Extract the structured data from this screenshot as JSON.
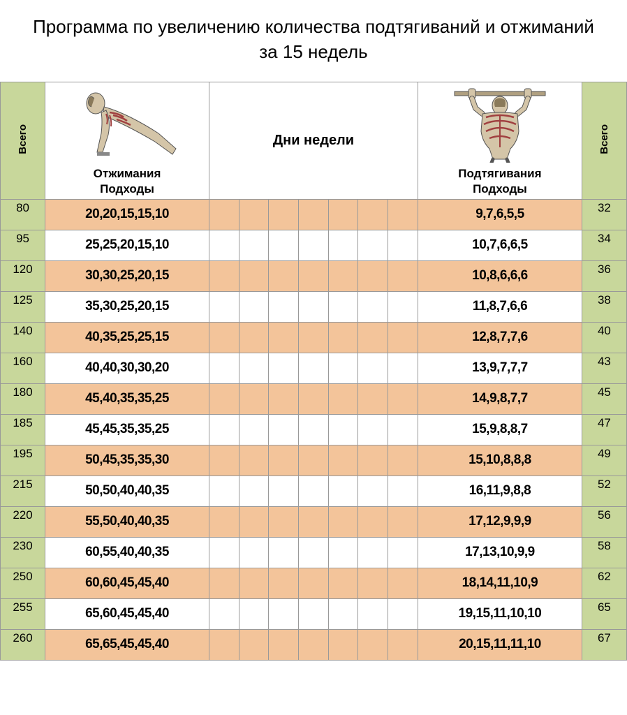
{
  "title": "Программа по увеличению количества подтягиваний и отжиманий за 15 недель",
  "header": {
    "total_label": "Всего",
    "days_label": "Дни недели",
    "pushup_label": "Отжимания\nПодходы",
    "pullup_label": "Подтягивания\nПодходы"
  },
  "colors": {
    "green": "#c8d79b",
    "orange": "#f3c49a",
    "white": "#ffffff",
    "border": "#999999",
    "text": "#000000"
  },
  "day_cols": 7,
  "rows": [
    {
      "push_total": "80",
      "push_sets": "20,20,15,15,10",
      "pull_sets": "9,7,6,5,5",
      "pull_total": "32",
      "shade": "orange"
    },
    {
      "push_total": "95",
      "push_sets": "25,25,20,15,10",
      "pull_sets": "10,7,6,6,5",
      "pull_total": "34",
      "shade": "white"
    },
    {
      "push_total": "120",
      "push_sets": "30,30,25,20,15",
      "pull_sets": "10,8,6,6,6",
      "pull_total": "36",
      "shade": "orange"
    },
    {
      "push_total": "125",
      "push_sets": "35,30,25,20,15",
      "pull_sets": "11,8,7,6,6",
      "pull_total": "38",
      "shade": "white"
    },
    {
      "push_total": "140",
      "push_sets": "40,35,25,25,15",
      "pull_sets": "12,8,7,7,6",
      "pull_total": "40",
      "shade": "orange"
    },
    {
      "push_total": "160",
      "push_sets": "40,40,30,30,20",
      "pull_sets": "13,9,7,7,7",
      "pull_total": "43",
      "shade": "white"
    },
    {
      "push_total": "180",
      "push_sets": "45,40,35,35,25",
      "pull_sets": "14,9,8,7,7",
      "pull_total": "45",
      "shade": "orange"
    },
    {
      "push_total": "185",
      "push_sets": "45,45,35,35,25",
      "pull_sets": "15,9,8,8,7",
      "pull_total": "47",
      "shade": "white"
    },
    {
      "push_total": "195",
      "push_sets": "50,45,35,35,30",
      "pull_sets": "15,10,8,8,8",
      "pull_total": "49",
      "shade": "orange"
    },
    {
      "push_total": "215",
      "push_sets": "50,50,40,40,35",
      "pull_sets": "16,11,9,8,8",
      "pull_total": "52",
      "shade": "white"
    },
    {
      "push_total": "220",
      "push_sets": "55,50,40,40,35",
      "pull_sets": "17,12,9,9,9",
      "pull_total": "56",
      "shade": "orange"
    },
    {
      "push_total": "230",
      "push_sets": "60,55,40,40,35",
      "pull_sets": "17,13,10,9,9",
      "pull_total": "58",
      "shade": "white"
    },
    {
      "push_total": "250",
      "push_sets": "60,60,45,45,40",
      "pull_sets": "18,14,11,10,9",
      "pull_total": "62",
      "shade": "orange"
    },
    {
      "push_total": "255",
      "push_sets": "65,60,45,45,40",
      "pull_sets": "19,15,11,10,10",
      "pull_total": "65",
      "shade": "white"
    },
    {
      "push_total": "260",
      "push_sets": "65,65,45,45,40",
      "pull_sets": "20,15,11,11,10",
      "pull_total": "67",
      "shade": "orange"
    }
  ]
}
